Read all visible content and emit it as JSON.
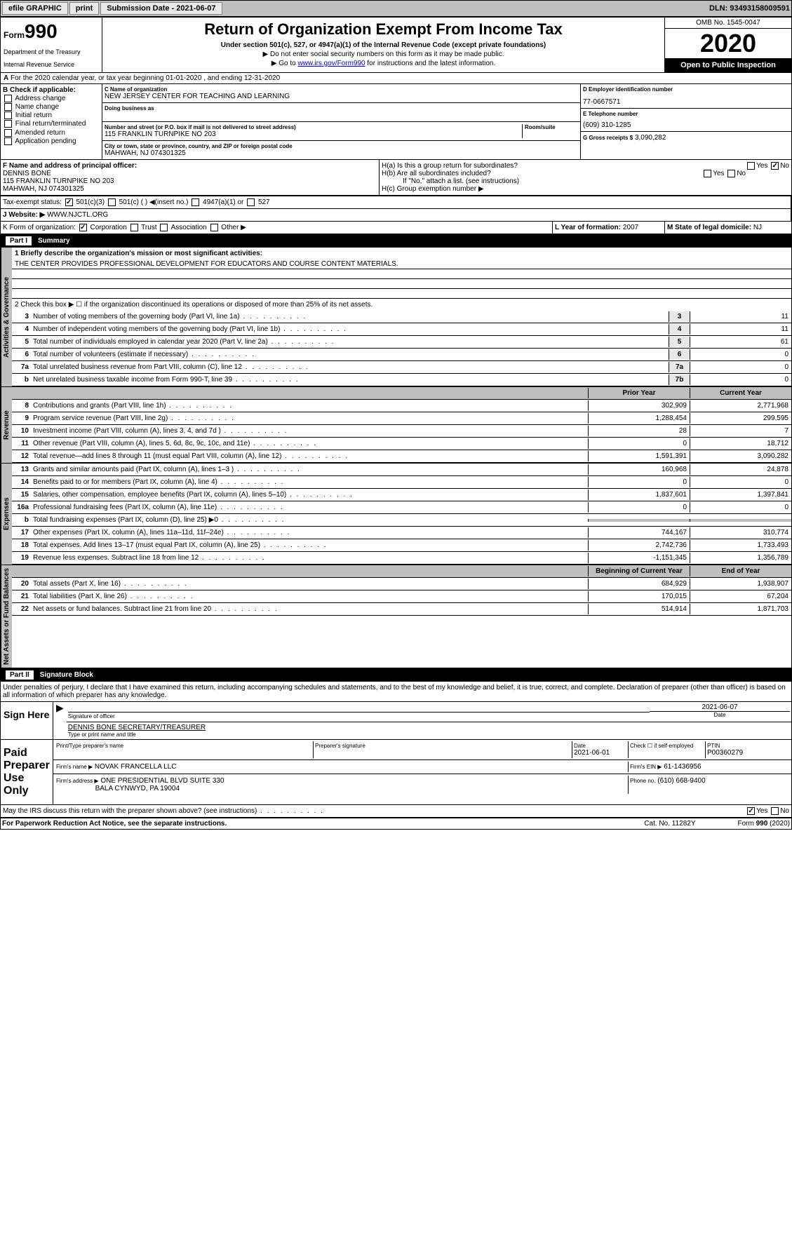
{
  "toolbar": {
    "efile": "efile GRAPHIC",
    "print": "print",
    "submission_label": "Submission Date - 2021-06-07",
    "dln": "DLN: 93493158009591"
  },
  "header": {
    "form_label": "Form",
    "form_number": "990",
    "dept": "Department of the Treasury",
    "irs": "Internal Revenue Service",
    "title": "Return of Organization Exempt From Income Tax",
    "subtitle": "Under section 501(c), 527, or 4947(a)(1) of the Internal Revenue Code (except private foundations)",
    "note1": "▶ Do not enter social security numbers on this form as it may be made public.",
    "note2_pre": "▶ Go to ",
    "note2_link": "www.irs.gov/Form990",
    "note2_post": " for instructions and the latest information.",
    "omb": "OMB No. 1545-0047",
    "year": "2020",
    "public": "Open to Public Inspection"
  },
  "section_a": {
    "tax_year": "For the 2020 calendar year, or tax year beginning 01-01-2020    , and ending 12-31-2020",
    "check_label": "B Check if applicable:",
    "checks": [
      "Address change",
      "Name change",
      "Initial return",
      "Final return/terminated",
      "Amended return",
      "Application pending"
    ],
    "name_label": "C Name of organization",
    "name": "NEW JERSEY CENTER FOR TEACHING AND LEARNING",
    "dba_label": "Doing business as",
    "addr_label": "Number and street (or P.O. box if mail is not delivered to street address)",
    "room_label": "Room/suite",
    "addr": "115 FRANKLIN TURNPIKE NO 203",
    "city_label": "City or town, state or province, country, and ZIP or foreign postal code",
    "city": "MAHWAH, NJ  074301325",
    "ein_label": "D Employer identification number",
    "ein": "77-0667571",
    "phone_label": "E Telephone number",
    "phone": "(609) 310-1285",
    "gross_label": "G Gross receipts $",
    "gross": "3,090,282",
    "officer_label": "F  Name and address of principal officer:",
    "officer_name": "DENNIS BONE",
    "officer_addr1": "115 FRANKLIN TURNPIKE NO 203",
    "officer_addr2": "MAHWAH, NJ  074301325",
    "ha": "H(a)  Is this a group return for subordinates?",
    "hb": "H(b)  Are all subordinates included?",
    "hb_note": "If \"No,\" attach a list. (see instructions)",
    "hc": "H(c)  Group exemption number ▶"
  },
  "tax_status": {
    "label": "Tax-exempt status:",
    "opt1": "501(c)(3)",
    "opt2": "501(c) (   ) ◀(insert no.)",
    "opt3": "4947(a)(1) or",
    "opt4": "527"
  },
  "website": {
    "label": "J    Website: ▶",
    "value": "WWW.NJCTL.ORG"
  },
  "form_org": {
    "label": "K Form of organization:",
    "opts": [
      "Corporation",
      "Trust",
      "Association",
      "Other ▶"
    ],
    "year_label": "L Year of formation: ",
    "year": "2007",
    "state_label": "M State of legal domicile: ",
    "state": "NJ"
  },
  "part1": {
    "label": "Part I",
    "title": "Summary",
    "vert_labels": [
      "Activities & Governance",
      "Revenue",
      "Expenses",
      "Net Assets or Fund Balances"
    ],
    "mission_label": "1  Briefly describe the organization's mission or most significant activities:",
    "mission": "THE CENTER PROVIDES PROFESSIONAL DEVELOPMENT FOR EDUCATORS AND COURSE CONTENT MATERIALS.",
    "line2": "2   Check this box ▶ ☐  if the organization discontinued its operations or disposed of more than 25% of its net assets.",
    "lines_gov": [
      {
        "n": "3",
        "l": "Number of voting members of the governing body (Part VI, line 1a)",
        "b": "3",
        "v": "11"
      },
      {
        "n": "4",
        "l": "Number of independent voting members of the governing body (Part VI, line 1b)",
        "b": "4",
        "v": "11"
      },
      {
        "n": "5",
        "l": "Total number of individuals employed in calendar year 2020 (Part V, line 2a)",
        "b": "5",
        "v": "61"
      },
      {
        "n": "6",
        "l": "Total number of volunteers (estimate if necessary)",
        "b": "6",
        "v": "0"
      },
      {
        "n": "7a",
        "l": "Total unrelated business revenue from Part VIII, column (C), line 12",
        "b": "7a",
        "v": "0"
      },
      {
        "n": "b",
        "l": "Net unrelated business taxable income from Form 990-T, line 39",
        "b": "7b",
        "v": "0"
      }
    ],
    "col_prior": "Prior Year",
    "col_current": "Current Year",
    "lines_rev": [
      {
        "n": "8",
        "l": "Contributions and grants (Part VIII, line 1h)",
        "p": "302,909",
        "c": "2,771,968"
      },
      {
        "n": "9",
        "l": "Program service revenue (Part VIII, line 2g)",
        "p": "1,288,454",
        "c": "299,595"
      },
      {
        "n": "10",
        "l": "Investment income (Part VIII, column (A), lines 3, 4, and 7d )",
        "p": "28",
        "c": "7"
      },
      {
        "n": "11",
        "l": "Other revenue (Part VIII, column (A), lines 5, 6d, 8c, 9c, 10c, and 11e)",
        "p": "0",
        "c": "18,712"
      },
      {
        "n": "12",
        "l": "Total revenue—add lines 8 through 11 (must equal Part VIII, column (A), line 12)",
        "p": "1,591,391",
        "c": "3,090,282"
      }
    ],
    "lines_exp": [
      {
        "n": "13",
        "l": "Grants and similar amounts paid (Part IX, column (A), lines 1–3 )",
        "p": "160,968",
        "c": "24,878"
      },
      {
        "n": "14",
        "l": "Benefits paid to or for members (Part IX, column (A), line 4)",
        "p": "0",
        "c": "0"
      },
      {
        "n": "15",
        "l": "Salaries, other compensation, employee benefits (Part IX, column (A), lines 5–10)",
        "p": "1,837,601",
        "c": "1,397,841"
      },
      {
        "n": "16a",
        "l": "Professional fundraising fees (Part IX, column (A), line 11e)",
        "p": "0",
        "c": "0"
      },
      {
        "n": "b",
        "l": "Total fundraising expenses (Part IX, column (D), line 25) ▶0",
        "p": "",
        "c": "",
        "shaded": true
      },
      {
        "n": "17",
        "l": "Other expenses (Part IX, column (A), lines 11a–11d, 11f–24e)",
        "p": "744,167",
        "c": "310,774"
      },
      {
        "n": "18",
        "l": "Total expenses. Add lines 13–17 (must equal Part IX, column (A), line 25)",
        "p": "2,742,736",
        "c": "1,733,493"
      },
      {
        "n": "19",
        "l": "Revenue less expenses. Subtract line 18 from line 12",
        "p": "-1,151,345",
        "c": "1,356,789"
      }
    ],
    "col_begin": "Beginning of Current Year",
    "col_end": "End of Year",
    "lines_net": [
      {
        "n": "20",
        "l": "Total assets (Part X, line 16)",
        "p": "684,929",
        "c": "1,938,907"
      },
      {
        "n": "21",
        "l": "Total liabilities (Part X, line 26)",
        "p": "170,015",
        "c": "67,204"
      },
      {
        "n": "22",
        "l": "Net assets or fund balances. Subtract line 21 from line 20",
        "p": "514,914",
        "c": "1,871,703"
      }
    ]
  },
  "part2": {
    "label": "Part II",
    "title": "Signature Block",
    "declaration": "Under penalties of perjury, I declare that I have examined this return, including accompanying schedules and statements, and to the best of my knowledge and belief, it is true, correct, and complete. Declaration of preparer (other than officer) is based on all information of which preparer has any knowledge.",
    "sign_here": "Sign Here",
    "sig_officer": "Signature of officer",
    "sig_date": "2021-06-07",
    "date_label": "Date",
    "officer_name": "DENNIS BONE  SECRETARY/TREASURER",
    "type_name": "Type or print name and title",
    "paid_label": "Paid Preparer Use Only",
    "prep_name_label": "Print/Type preparer's name",
    "prep_sig_label": "Preparer's signature",
    "prep_date": "2021-06-01",
    "check_self": "Check ☐ if self-employed",
    "ptin_label": "PTIN",
    "ptin": "P00360279",
    "firm_name_label": "Firm's name     ▶",
    "firm_name": "NOVAK FRANCELLA LLC",
    "firm_ein_label": "Firm's EIN ▶",
    "firm_ein": "61-1436956",
    "firm_addr_label": "Firm's address ▶",
    "firm_addr1": "ONE PRESIDENTIAL BLVD SUITE 330",
    "firm_addr2": "BALA CYNWYD, PA  19004",
    "phone_label": "Phone no.",
    "phone": "(610) 668-9400",
    "discuss": "May the IRS discuss this return with the preparer shown above? (see instructions)"
  },
  "footer": {
    "paperwork": "For Paperwork Reduction Act Notice, see the separate instructions.",
    "cat": "Cat. No. 11282Y",
    "form": "Form 990 (2020)"
  }
}
